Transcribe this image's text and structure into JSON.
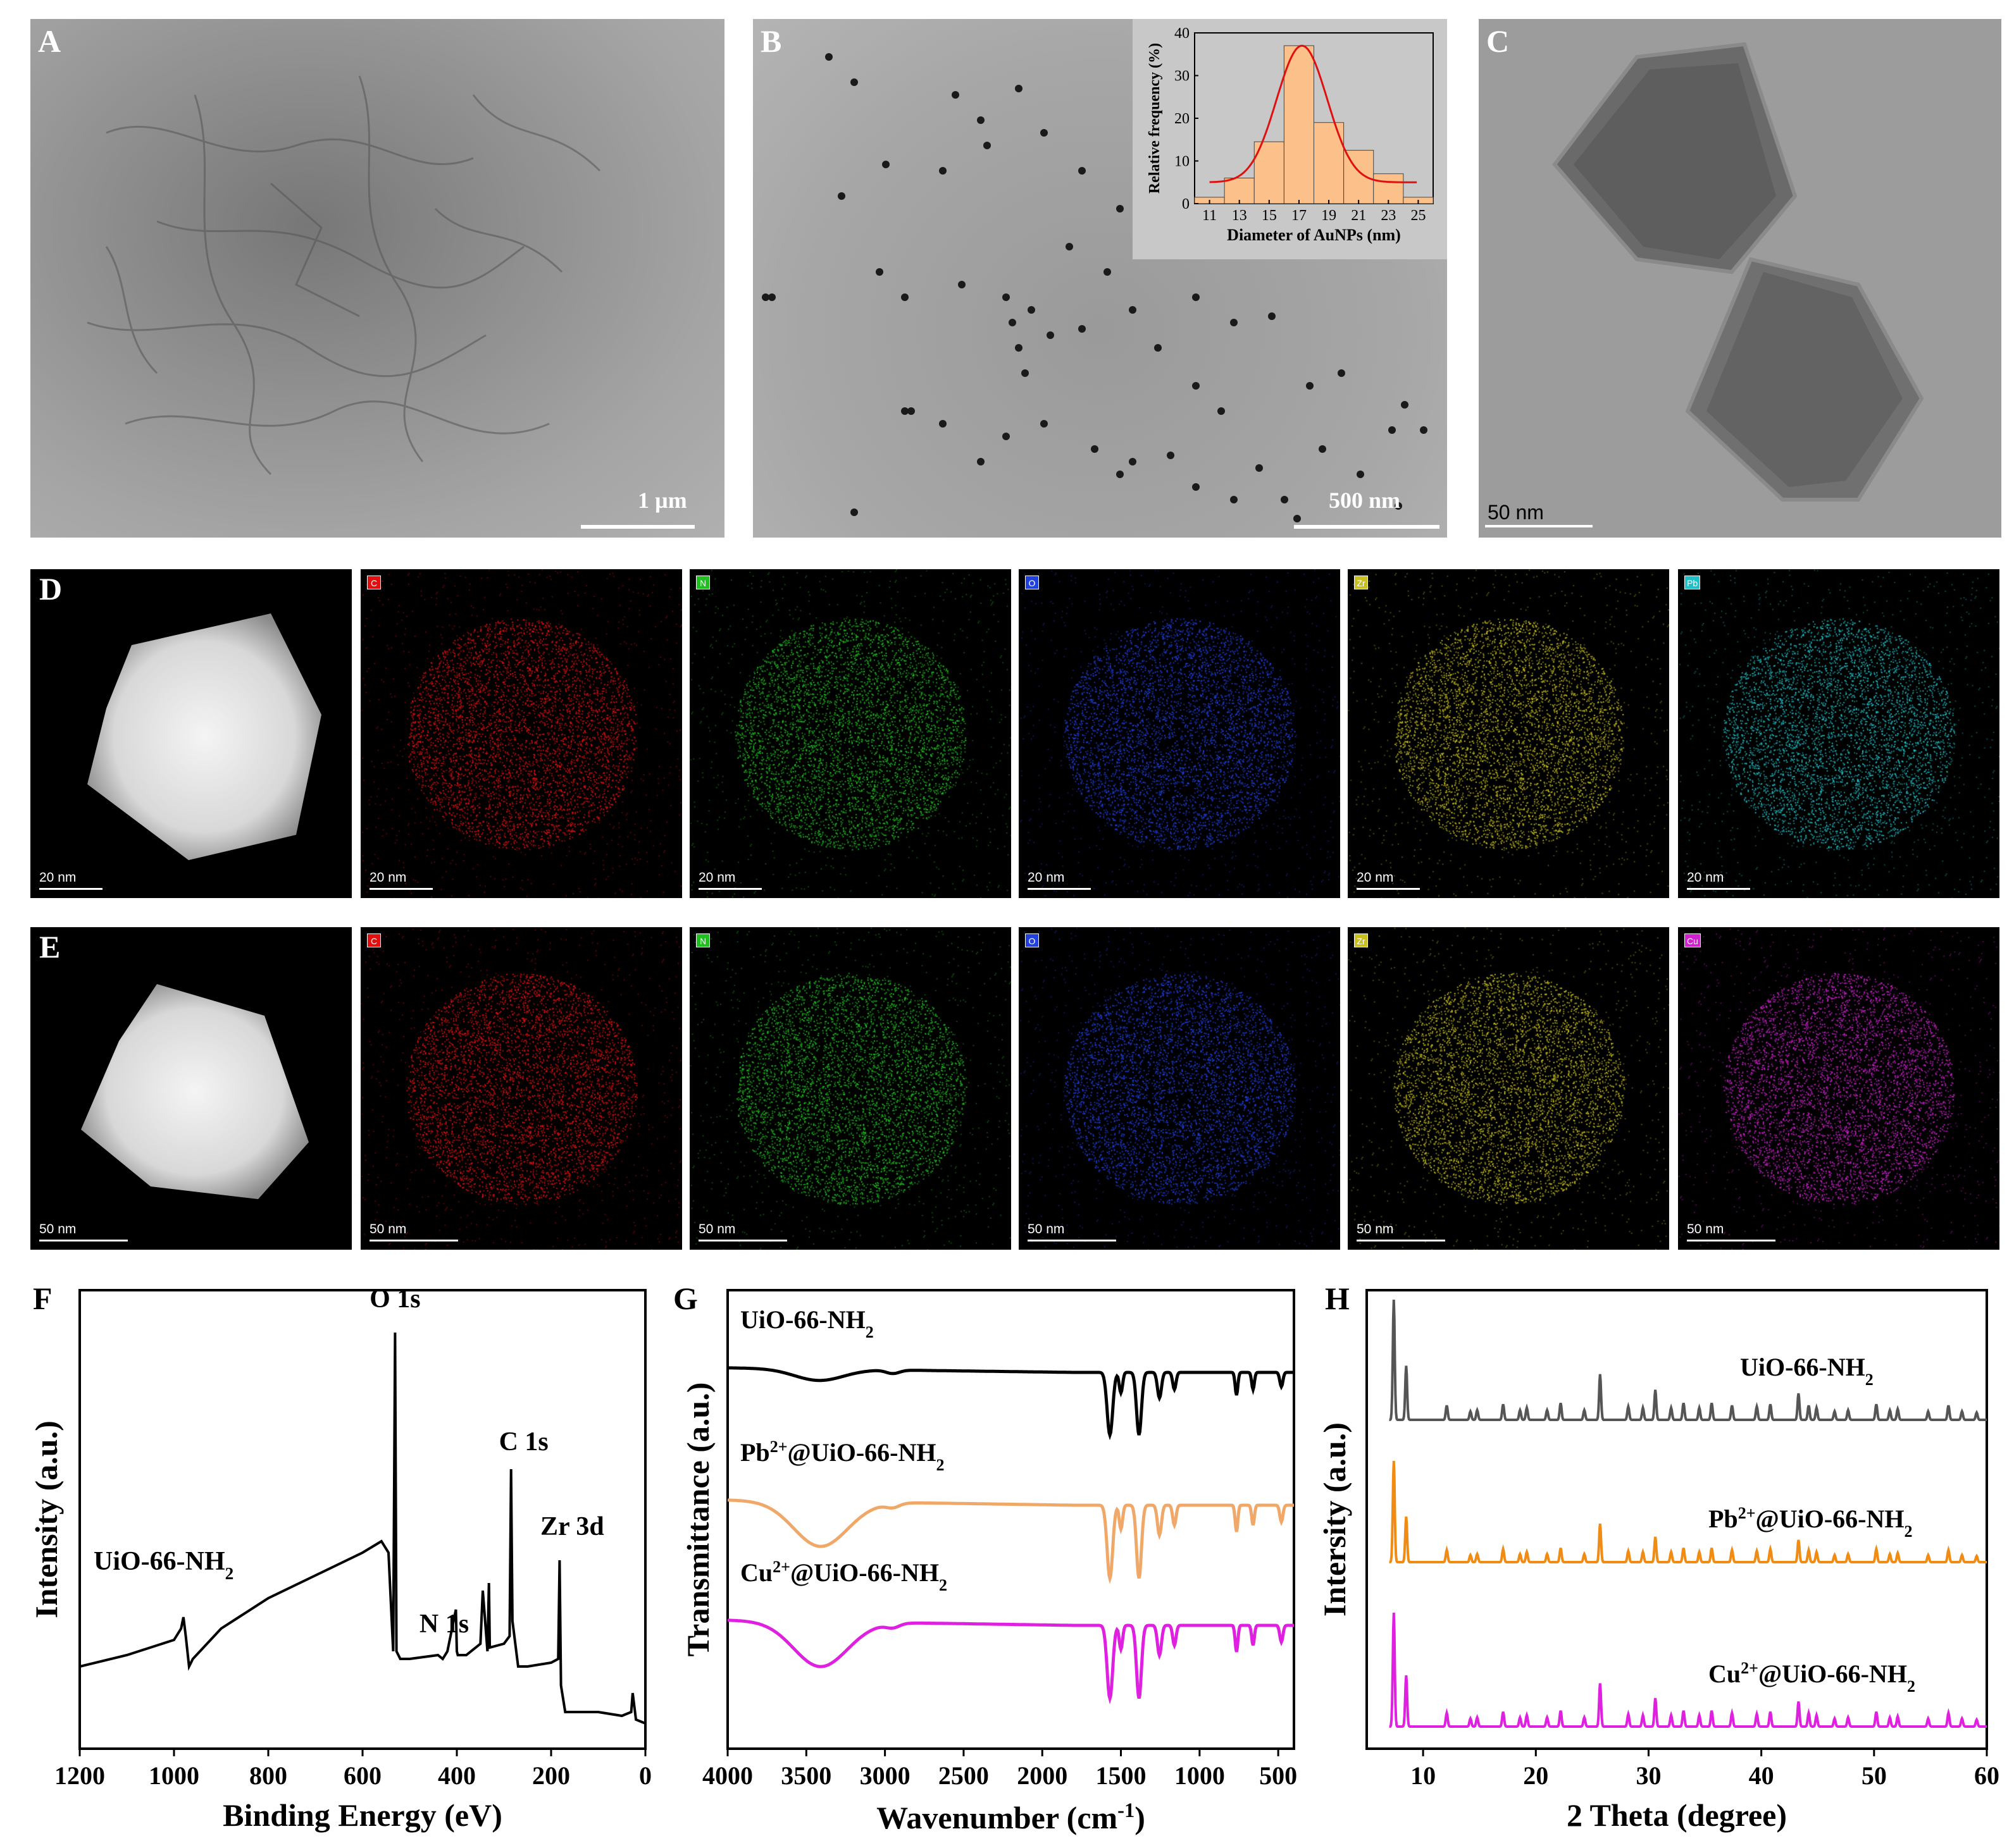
{
  "panels": {
    "A": {
      "label": "A",
      "scale_bar": "1 µm"
    },
    "B": {
      "label": "B",
      "scale_bar": "500 nm"
    },
    "C": {
      "label": "C",
      "scale_bar": "50 nm"
    },
    "D": {
      "label": "D",
      "scale_bar": "20 nm"
    },
    "E": {
      "label": "E",
      "scale_bar": "50 nm"
    },
    "F": {
      "label": "F"
    },
    "G": {
      "label": "G"
    },
    "H": {
      "label": "H"
    }
  },
  "mapping": {
    "D_elements": [
      {
        "symbol": "C",
        "color": "#e01010"
      },
      {
        "symbol": "N",
        "color": "#20c020"
      },
      {
        "symbol": "O",
        "color": "#2040e0"
      },
      {
        "symbol": "Zr",
        "color": "#c8c020"
      },
      {
        "symbol": "Pb",
        "color": "#20c0c8"
      }
    ],
    "E_elements": [
      {
        "symbol": "C",
        "color": "#e01010"
      },
      {
        "symbol": "N",
        "color": "#20c020"
      },
      {
        "symbol": "O",
        "color": "#2040e0"
      },
      {
        "symbol": "Zr",
        "color": "#c8c020"
      },
      {
        "symbol": "Cu",
        "color": "#d020d0"
      }
    ]
  },
  "chart_data": [
    {
      "type": "bar",
      "panel": "B-inset",
      "xlabel": "Diameter of AuNPs (nm)",
      "ylabel": "Relative frequency (%)",
      "categories": [
        "11",
        "13",
        "15",
        "17",
        "19",
        "21",
        "23",
        "25"
      ],
      "x_centers": [
        11,
        12.5,
        14,
        15.5,
        17,
        18.5,
        20,
        21.5,
        23,
        24.5
      ],
      "values": [
        1.5,
        6,
        14.5,
        37,
        19,
        12.5,
        7,
        1.5
      ],
      "bar_x": [
        11,
        13,
        15,
        17,
        19,
        21,
        23,
        25
      ],
      "ylim": [
        0,
        40
      ],
      "yticks": [
        0,
        10,
        20,
        30,
        40
      ],
      "fit_color": "#e01010",
      "bar_color": "#fcc08a"
    },
    {
      "type": "line",
      "panel": "F",
      "xlabel": "Binding Energy (eV)",
      "ylabel": "Intensity (a.u.)",
      "xlim": [
        1200,
        0
      ],
      "xticks": [
        1200,
        1000,
        800,
        600,
        400,
        200,
        0
      ],
      "series_label": "UiO-66-NH",
      "series_label_sub": "2",
      "peaks": [
        {
          "label": "O 1s",
          "x": 531
        },
        {
          "label": "N 1s",
          "x": 400
        },
        {
          "label": "C 1s",
          "x": 285
        },
        {
          "label": "Zr 3d",
          "x": 182
        }
      ],
      "x": [
        1200,
        1100,
        1000,
        985,
        980,
        975,
        968,
        960,
        900,
        800,
        700,
        600,
        560,
        545,
        535,
        531,
        528,
        520,
        500,
        440,
        430,
        420,
        402,
        400,
        398,
        380,
        350,
        345,
        335,
        332,
        330,
        300,
        288,
        285,
        282,
        270,
        250,
        200,
        185,
        182,
        179,
        170,
        100,
        50,
        30,
        27,
        20,
        0
      ],
      "y": [
        0.1,
        0.13,
        0.17,
        0.2,
        0.23,
        0.18,
        0.1,
        0.12,
        0.2,
        0.28,
        0.34,
        0.4,
        0.43,
        0.4,
        0.14,
        0.98,
        0.14,
        0.12,
        0.12,
        0.13,
        0.12,
        0.14,
        0.25,
        0.14,
        0.13,
        0.13,
        0.16,
        0.3,
        0.14,
        0.32,
        0.15,
        0.16,
        0.18,
        0.62,
        0.22,
        0.1,
        0.1,
        0.11,
        0.12,
        0.38,
        0.05,
        -0.02,
        -0.02,
        -0.03,
        -0.02,
        0.03,
        -0.04,
        -0.05
      ]
    },
    {
      "type": "line",
      "panel": "G",
      "xlabel": "Wavenumber (cm",
      "xlabel_sup": "-1",
      "xlabel_end": ")",
      "ylabel": "Transmittance (a.u.)",
      "xlim": [
        4000,
        400
      ],
      "xticks": [
        4000,
        3500,
        3000,
        2500,
        2000,
        1500,
        1000,
        500
      ],
      "series": [
        {
          "name": "UiO-66-NH",
          "sub": "2",
          "sup": "",
          "color": "#000000"
        },
        {
          "name": "@UiO-66-NH",
          "prefix": "Pb",
          "sup": "2+",
          "sub": "2",
          "color": "#f0a868"
        },
        {
          "name": "@UiO-66-NH",
          "prefix": "Cu",
          "sup": "2+",
          "sub": "2",
          "color": "#e020e0"
        }
      ]
    },
    {
      "type": "line",
      "panel": "H",
      "xlabel": "2 Theta (degree)",
      "ylabel": "Intersity (a.u.)",
      "xlim": [
        5,
        60
      ],
      "xticks": [
        10,
        20,
        30,
        40,
        50,
        60
      ],
      "peaks_x": [
        7.4,
        8.5,
        12.1,
        14.2,
        14.8,
        17.1,
        18.6,
        19.2,
        21.0,
        22.2,
        24.3,
        25.7,
        28.2,
        29.5,
        30.6,
        32.0,
        33.1,
        34.5,
        35.6,
        37.4,
        39.6,
        40.8,
        43.3,
        44.2,
        44.9,
        46.5,
        47.7,
        50.2,
        51.4,
        52.1,
        54.8,
        56.6,
        57.8,
        59.1
      ],
      "peaks_h": [
        1.0,
        0.45,
        0.12,
        0.07,
        0.08,
        0.13,
        0.08,
        0.1,
        0.08,
        0.14,
        0.08,
        0.38,
        0.11,
        0.1,
        0.25,
        0.1,
        0.14,
        0.1,
        0.14,
        0.12,
        0.11,
        0.13,
        0.22,
        0.12,
        0.1,
        0.07,
        0.08,
        0.13,
        0.08,
        0.09,
        0.07,
        0.12,
        0.07,
        0.06
      ],
      "series": [
        {
          "name": "UiO-66-NH",
          "sub": "2",
          "color": "#555555"
        },
        {
          "name": "@UiO-66-NH",
          "prefix": "Pb",
          "sup": "2+",
          "sub": "2",
          "color": "#f08c14"
        },
        {
          "name": "@UiO-66-NH",
          "prefix": "Cu",
          "sup": "2+",
          "sub": "2",
          "color": "#e020e0"
        }
      ]
    }
  ]
}
